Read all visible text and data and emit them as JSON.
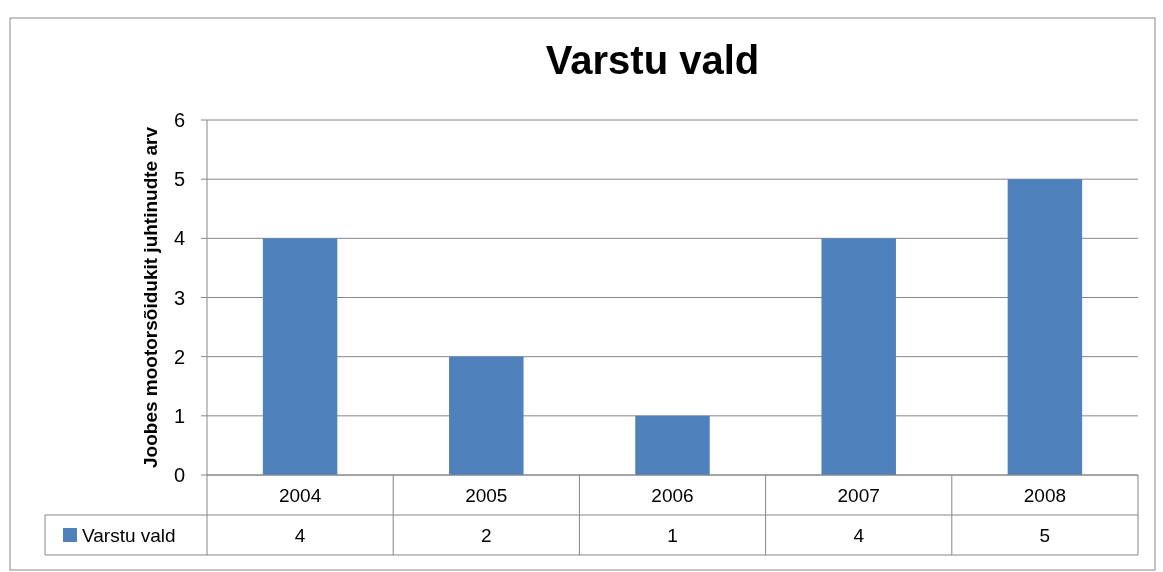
{
  "chart_data": {
    "type": "bar",
    "title": "Varstu vald",
    "ylabel": "Joobes mootorsõidukit juhtinudte arv",
    "categories": [
      "2004",
      "2005",
      "2006",
      "2007",
      "2008"
    ],
    "series": [
      {
        "name": "Varstu vald",
        "color": "#4f81bd",
        "values": [
          4,
          2,
          1,
          4,
          5
        ]
      }
    ],
    "ylim": [
      0,
      6
    ],
    "yticks": [
      0,
      1,
      2,
      3,
      4,
      5,
      6
    ],
    "grid": "y",
    "legend": "bottom left",
    "data_labels": true
  }
}
